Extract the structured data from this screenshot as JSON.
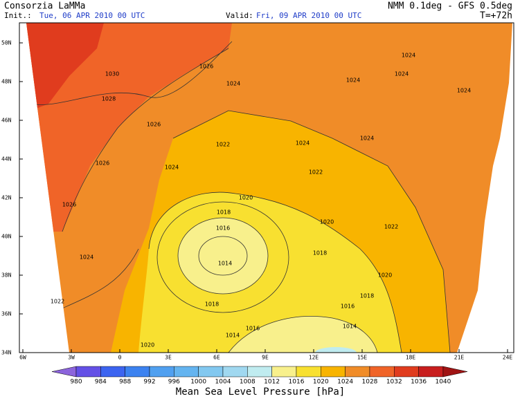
{
  "header": {
    "title": "Consorzia LaMMa",
    "model": "NMM 0.1deg - GFS 0.5deg",
    "init_label": "Init.:",
    "init_time": "Tue, 06 APR 2010  00 UTC",
    "valid_label": "Valid:",
    "valid_time": "Fri, 09 APR 2010  00 UTC",
    "forecast_step": "T=+72h"
  },
  "axes": {
    "lat_ticks": [
      "50N",
      "48N",
      "46N",
      "44N",
      "42N",
      "40N",
      "38N",
      "36N",
      "34N"
    ],
    "lon_ticks": [
      "6W",
      "3W",
      "0",
      "3E",
      "6E",
      "9E",
      "12E",
      "15E",
      "18E",
      "21E",
      "24E"
    ]
  },
  "contour_labels": [
    "1030",
    "1028",
    "1026",
    "1024",
    "1026",
    "1022",
    "1024",
    "1024",
    "1024",
    "1024",
    "1024",
    "1024",
    "1024",
    "1026",
    "1026",
    "1024",
    "1022",
    "1022",
    "1020",
    "1018",
    "1016",
    "1014",
    "1020",
    "1022",
    "1018",
    "1020",
    "1018",
    "1016",
    "1014",
    "1018",
    "1016",
    "1014",
    "1020"
  ],
  "colorbar": {
    "levels": [
      "980",
      "984",
      "988",
      "992",
      "996",
      "1000",
      "1004",
      "1008",
      "1012",
      "1016",
      "1020",
      "1024",
      "1028",
      "1032",
      "1036",
      "1040"
    ],
    "colors": [
      "#8c64dc",
      "#6450e6",
      "#3c64f0",
      "#3c82f0",
      "#50a0f0",
      "#64b4f0",
      "#82c8f0",
      "#a0d8f0",
      "#c0ecf0",
      "#f8f08c",
      "#f8e030",
      "#f8b400",
      "#f08c28",
      "#f06428",
      "#e03c1e",
      "#c81e1e",
      "#a01414"
    ],
    "title": "Mean Sea Level Pressure [hPa]"
  }
}
